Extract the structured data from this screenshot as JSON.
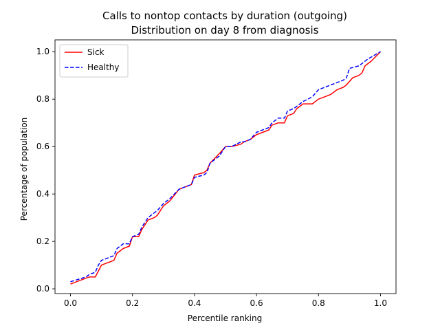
{
  "chart_data": {
    "type": "line",
    "title": "Calls to nontop contacts by duration (outgoing)",
    "subtitle": "Distribution on day 8 from diagnosis",
    "xlabel": "Percentile ranking",
    "ylabel": "Percentage of population",
    "xlim": [
      -0.05,
      1.05
    ],
    "ylim": [
      -0.02,
      1.05
    ],
    "xticks": [
      "0.0",
      "0.2",
      "0.4",
      "0.6",
      "0.8",
      "1.0"
    ],
    "yticks": [
      "0.0",
      "0.2",
      "0.4",
      "0.6",
      "0.8",
      "1.0"
    ],
    "grid": false,
    "legend_position": "top-left",
    "series": [
      {
        "name": "Sick",
        "color": "#ff0000",
        "style": "solid",
        "x": [
          0.0,
          0.06,
          0.08,
          0.1,
          0.14,
          0.15,
          0.17,
          0.19,
          0.2,
          0.22,
          0.23,
          0.25,
          0.27,
          0.28,
          0.3,
          0.32,
          0.35,
          0.37,
          0.39,
          0.4,
          0.43,
          0.44,
          0.45,
          0.48,
          0.5,
          0.52,
          0.55,
          0.56,
          0.58,
          0.6,
          0.62,
          0.64,
          0.65,
          0.67,
          0.69,
          0.7,
          0.72,
          0.73,
          0.75,
          0.78,
          0.8,
          0.82,
          0.84,
          0.86,
          0.88,
          0.89,
          0.91,
          0.93,
          0.94,
          0.95,
          0.97,
          1.0
        ],
        "y": [
          0.02,
          0.05,
          0.05,
          0.1,
          0.12,
          0.15,
          0.17,
          0.18,
          0.22,
          0.22,
          0.25,
          0.29,
          0.3,
          0.31,
          0.35,
          0.37,
          0.42,
          0.43,
          0.44,
          0.48,
          0.49,
          0.5,
          0.53,
          0.57,
          0.6,
          0.6,
          0.61,
          0.62,
          0.63,
          0.65,
          0.66,
          0.67,
          0.69,
          0.7,
          0.7,
          0.73,
          0.74,
          0.76,
          0.78,
          0.78,
          0.8,
          0.81,
          0.82,
          0.84,
          0.85,
          0.86,
          0.89,
          0.9,
          0.91,
          0.94,
          0.96,
          1.0
        ]
      },
      {
        "name": "Healthy",
        "color": "#0000ff",
        "style": "dashed",
        "x": [
          0.0,
          0.05,
          0.06,
          0.08,
          0.09,
          0.1,
          0.12,
          0.14,
          0.15,
          0.17,
          0.19,
          0.2,
          0.22,
          0.23,
          0.25,
          0.27,
          0.28,
          0.3,
          0.32,
          0.35,
          0.37,
          0.39,
          0.4,
          0.43,
          0.44,
          0.45,
          0.48,
          0.5,
          0.52,
          0.55,
          0.56,
          0.58,
          0.6,
          0.62,
          0.64,
          0.65,
          0.67,
          0.69,
          0.7,
          0.72,
          0.73,
          0.75,
          0.78,
          0.8,
          0.82,
          0.84,
          0.86,
          0.88,
          0.89,
          0.9,
          0.93,
          0.94,
          0.96,
          1.0
        ],
        "y": [
          0.03,
          0.05,
          0.06,
          0.07,
          0.1,
          0.12,
          0.13,
          0.14,
          0.17,
          0.19,
          0.19,
          0.22,
          0.23,
          0.26,
          0.3,
          0.32,
          0.33,
          0.36,
          0.38,
          0.42,
          0.43,
          0.44,
          0.47,
          0.48,
          0.49,
          0.53,
          0.56,
          0.6,
          0.6,
          0.62,
          0.62,
          0.63,
          0.66,
          0.67,
          0.68,
          0.7,
          0.72,
          0.72,
          0.75,
          0.76,
          0.77,
          0.79,
          0.81,
          0.84,
          0.85,
          0.86,
          0.87,
          0.88,
          0.89,
          0.93,
          0.94,
          0.95,
          0.97,
          1.0
        ]
      }
    ]
  }
}
